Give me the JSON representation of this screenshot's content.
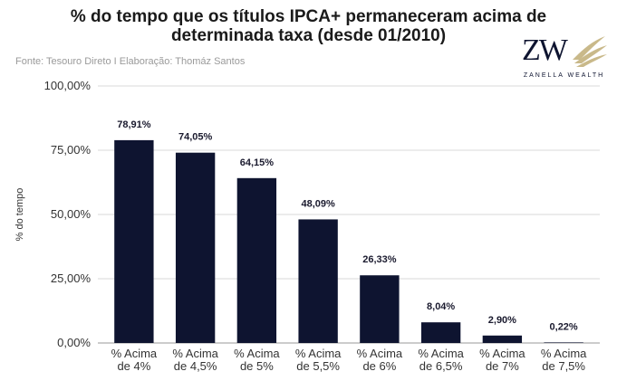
{
  "header": {
    "title_line1": "% do tempo que os títulos IPCA+ permaneceram acima de",
    "title_line2": "determinada taxa (desde 01/2010)",
    "source": "Fonte: Tesouro Direto I Elaboração: Thomáz Santos"
  },
  "brand": {
    "mark": "ZW",
    "name": "ZANELLA WEALTH"
  },
  "colors": {
    "bar": "#0e1430",
    "grid": "#d9d9d9"
  },
  "chart_data": {
    "type": "bar",
    "ylabel": "% do tempo",
    "ylim": [
      0,
      100
    ],
    "yticks": [
      "0,00%",
      "25,00%",
      "50,00%",
      "75,00%",
      "100,00%"
    ],
    "ytick_values": [
      0,
      25,
      50,
      75,
      100
    ],
    "grid": true,
    "categories": [
      [
        "% Acima",
        "de 4%"
      ],
      [
        "% Acima",
        "de 4,5%"
      ],
      [
        "% Acima",
        "de 5%"
      ],
      [
        "% Acima",
        "de 5,5%"
      ],
      [
        "% Acima",
        "de 6%"
      ],
      [
        "% Acima",
        "de 6,5%"
      ],
      [
        "% Acima",
        "de 7%"
      ],
      [
        "% Acima",
        "de 7,5%"
      ]
    ],
    "values": [
      78.91,
      74.05,
      64.15,
      48.09,
      26.33,
      8.04,
      2.9,
      0.22
    ],
    "data_labels": [
      "78,91%",
      "74,05%",
      "64,15%",
      "48,09%",
      "26,33%",
      "8,04%",
      "2,90%",
      "0,22%"
    ]
  }
}
